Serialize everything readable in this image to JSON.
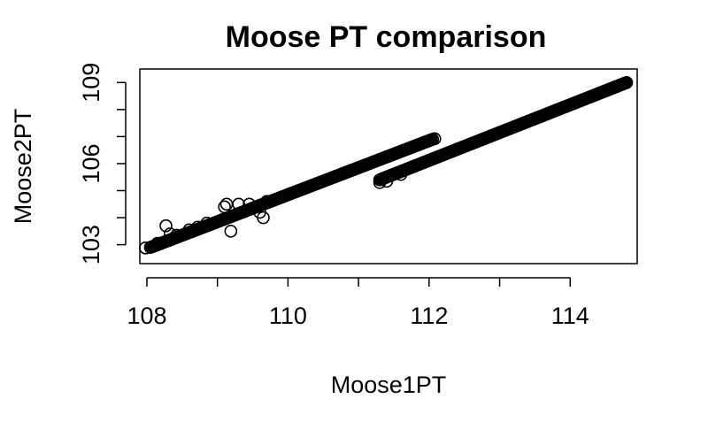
{
  "chart_data": {
    "type": "scatter",
    "title": "Moose PT comparison",
    "xlabel": "Moose1PT",
    "ylabel": "Moose2PT",
    "xlim": [
      107.9,
      114.95
    ],
    "ylim": [
      102.3,
      109.5
    ],
    "x_ticks": [
      108,
      109,
      110,
      111,
      112,
      113,
      114
    ],
    "x_tick_labels": [
      "108",
      "110",
      "112",
      "114"
    ],
    "x_tick_label_values": [
      108,
      110,
      112,
      114
    ],
    "y_ticks": [
      103,
      104,
      105,
      106,
      107,
      108,
      109
    ],
    "y_tick_labels": [
      "103",
      "106",
      "109"
    ],
    "y_tick_label_values": [
      103,
      106,
      109
    ],
    "grid": false,
    "marker": "open-circle",
    "color": "#000000",
    "segments": [
      {
        "x_start": 108.05,
        "y_start": 102.9,
        "x_end": 112.05,
        "y_end": 106.9,
        "step": 0.015
      },
      {
        "x_start": 111.3,
        "y_start": 105.4,
        "x_end": 114.8,
        "y_end": 109.0,
        "step": 0.015
      }
    ],
    "outliers": [
      {
        "x": 107.98,
        "y": 102.88
      },
      {
        "x": 108.15,
        "y": 103.05
      },
      {
        "x": 108.27,
        "y": 103.7
      },
      {
        "x": 108.33,
        "y": 103.4
      },
      {
        "x": 108.42,
        "y": 103.35
      },
      {
        "x": 108.6,
        "y": 103.55
      },
      {
        "x": 108.72,
        "y": 103.65
      },
      {
        "x": 108.85,
        "y": 103.8
      },
      {
        "x": 109.1,
        "y": 104.4
      },
      {
        "x": 109.13,
        "y": 104.5
      },
      {
        "x": 109.19,
        "y": 103.5
      },
      {
        "x": 109.3,
        "y": 104.5
      },
      {
        "x": 109.45,
        "y": 104.5
      },
      {
        "x": 109.6,
        "y": 104.2
      },
      {
        "x": 109.65,
        "y": 104.0
      },
      {
        "x": 109.7,
        "y": 104.6
      },
      {
        "x": 111.3,
        "y": 105.3
      },
      {
        "x": 111.4,
        "y": 105.35
      },
      {
        "x": 111.6,
        "y": 105.6
      },
      {
        "x": 112.0,
        "y": 106.85
      },
      {
        "x": 112.08,
        "y": 106.92
      }
    ]
  }
}
